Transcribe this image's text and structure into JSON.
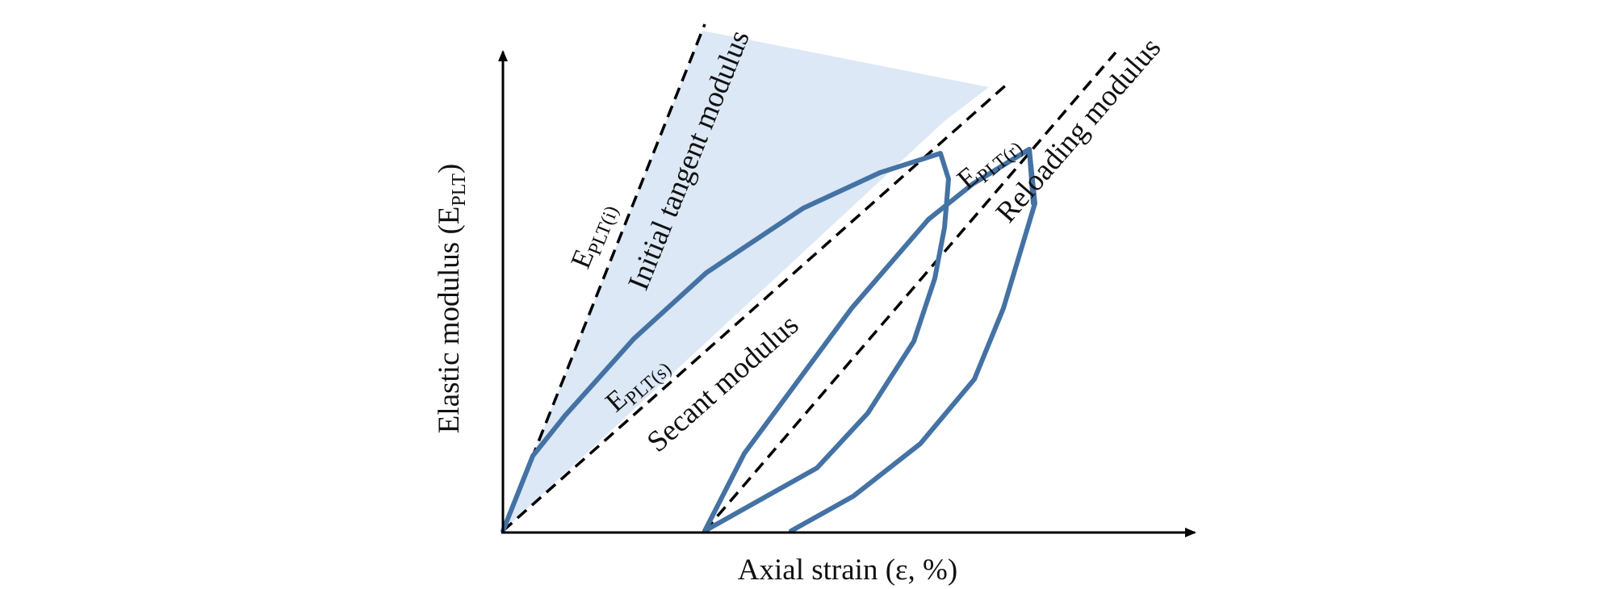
{
  "diagram": {
    "x_axis_label": "Axial strain (ε, %)",
    "y_axis_label": {
      "main": "Elastic modulus (E",
      "sub": "PLT",
      "close": ")"
    },
    "labels": {
      "initial_tangent": "Initial tangent modulus",
      "secant": "Secant modulus",
      "reloading": "Reloading modulus"
    },
    "symbols": {
      "initial": {
        "main": "E",
        "sub": "PLT(i)"
      },
      "secant": {
        "main": "E",
        "sub": "PLT(s)"
      },
      "reloading": {
        "main": "E",
        "sub": "PLT(r)"
      }
    },
    "colors": {
      "curve": "#4472a4",
      "shade": "#dce8f5",
      "axis": "#000000",
      "dashed": "#000000"
    }
  }
}
